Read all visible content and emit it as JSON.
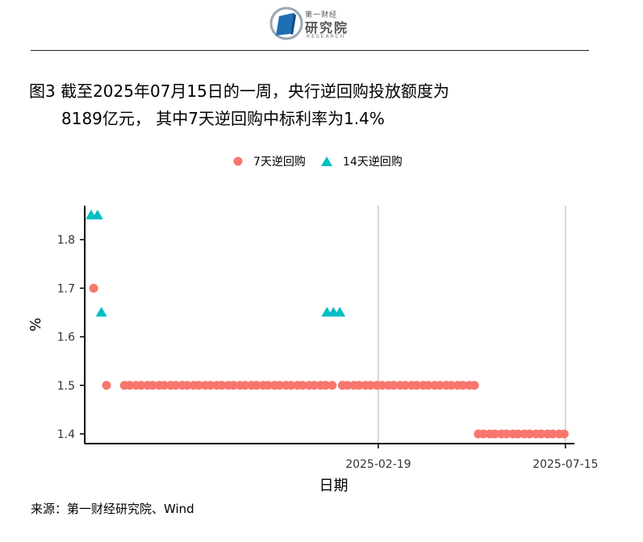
{
  "header": {
    "logo_top": "第一财经",
    "logo_main": "研究院",
    "logo_sub": "RESEARCH",
    "logo_icon": "book-logo-icon",
    "title_line1": "图3  截至2025年07月15日的一周，央行逆回购投放额度为",
    "title_line2": "8189亿元， 其中7天逆回购中标利率为1.4%"
  },
  "source": "来源：第一财经研究院、Wind",
  "colors": {
    "series7": "#F8766D",
    "series14": "#00BFC4",
    "grid": "#bdbdbd",
    "axis": "#000000"
  },
  "chart_data": {
    "type": "scatter",
    "title": "",
    "xlabel": "日期",
    "ylabel": "%",
    "ylim": [
      1.38,
      1.87
    ],
    "y_ticks": [
      1.4,
      1.5,
      1.6,
      1.7,
      1.8
    ],
    "y_tick_labels": [
      "1.4",
      "1.5",
      "1.6",
      "1.7",
      "1.8"
    ],
    "xlim": [
      "2024-07-05",
      "2025-07-22"
    ],
    "x_ticks": [
      "2025-02-19",
      "2025-07-15"
    ],
    "x_tick_labels": [
      "2025-02-19",
      "2025-07-15"
    ],
    "grid": "vertical major x gridlines",
    "legend_position": "top",
    "series": [
      {
        "name": "7天逆回购",
        "marker": "circle",
        "points": [
          {
            "x": "2024-07-12",
            "y": 1.7
          },
          {
            "range": [
              "2024-07-22",
              "2024-07-26"
            ],
            "y": 1.5
          },
          {
            "range": [
              "2024-08-05",
              "2025-01-15"
            ],
            "y": 1.5
          },
          {
            "range": [
              "2025-01-22",
              "2025-05-07"
            ],
            "y": 1.5
          },
          {
            "range": [
              "2025-05-08",
              "2025-07-15"
            ],
            "y": 1.4
          }
        ]
      },
      {
        "name": "14天逆回购",
        "marker": "triangle",
        "points": [
          {
            "x": "2024-07-10",
            "y": 1.85
          },
          {
            "x": "2024-07-15",
            "y": 1.85
          },
          {
            "x": "2024-07-18",
            "y": 1.65
          },
          {
            "x": "2025-01-10",
            "y": 1.65
          },
          {
            "x": "2025-01-15",
            "y": 1.65
          },
          {
            "x": "2025-01-20",
            "y": 1.65
          }
        ]
      }
    ]
  }
}
